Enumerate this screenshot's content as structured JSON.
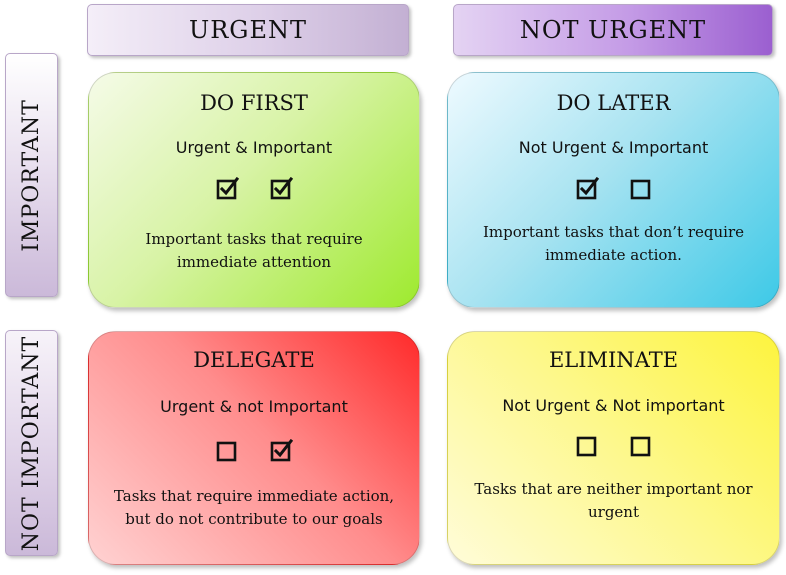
{
  "headers": {
    "urgent": "URGENT",
    "not_urgent": "NOT URGENT",
    "important": "IMPORTANT",
    "not_important": "NOT IMPORTANT"
  },
  "quadrants": [
    {
      "title": "DO FIRST",
      "subtitle": "Urgent & Important",
      "checks": [
        true,
        true
      ],
      "description": "Important tasks that require immediate attention"
    },
    {
      "title": "DO LATER",
      "subtitle": "Not Urgent & Important",
      "checks": [
        true,
        false
      ],
      "description": "Important tasks that don’t require immediate action."
    },
    {
      "title": "DELEGATE",
      "subtitle": "Urgent & not Important",
      "checks": [
        false,
        true
      ],
      "description": "Tasks that require immediate action, but do not contribute to our goals"
    },
    {
      "title": "ELIMINATE",
      "subtitle": "Not Urgent & Not important",
      "checks": [
        false,
        false
      ],
      "description": "Tasks that are neither important nor urgent"
    }
  ],
  "colors": {
    "do_first": "#9eea2e",
    "do_later": "#3dc9e7",
    "delegate": "#ff2a2a",
    "eliminate": "#fdf43e",
    "header_purple": "#9b5fd0"
  }
}
